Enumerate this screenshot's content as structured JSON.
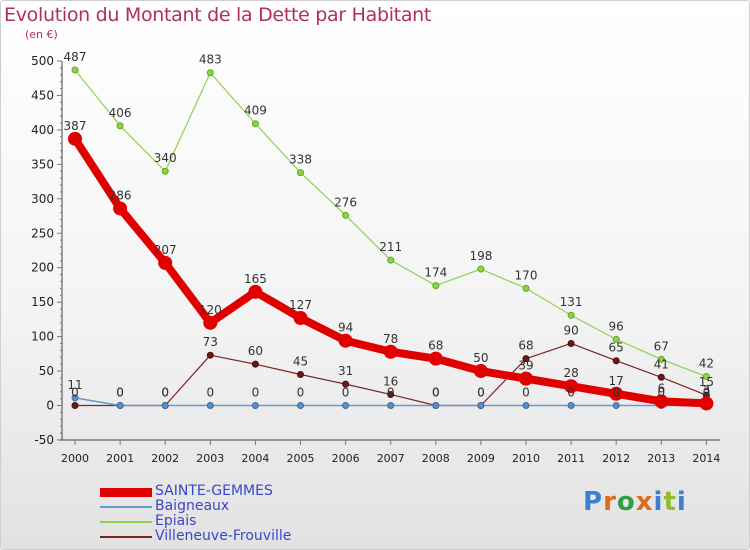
{
  "title": "Evolution du Montant de la Dette par Habitant",
  "subtitle": "(en €)",
  "logo": "Proxiti",
  "chart_data": {
    "type": "line",
    "title": "Evolution du Montant de la Dette par Habitant",
    "subtitle": "(en €)",
    "xlabel": "",
    "ylabel": "",
    "x": [
      "2000",
      "2001",
      "2002",
      "2003",
      "2004",
      "2005",
      "2006",
      "2007",
      "2008",
      "2009",
      "2010",
      "2011",
      "2012",
      "2013",
      "2014"
    ],
    "ylim": [
      -50,
      500
    ],
    "yticks": [
      -50,
      0,
      50,
      100,
      150,
      200,
      250,
      300,
      350,
      400,
      450,
      500
    ],
    "grid": false,
    "legend_position": "bottom-left",
    "series": [
      {
        "name": "SAINTE-GEMMES",
        "color": "#e00000",
        "values": [
          387,
          286,
          207,
          120,
          165,
          127,
          94,
          78,
          68,
          50,
          39,
          28,
          17,
          6,
          3
        ],
        "labels": [
          "387",
          "286",
          "207",
          "120",
          "165",
          "127",
          "94",
          "78",
          "68",
          "50",
          "39",
          "28",
          "17",
          "6",
          "3"
        ]
      },
      {
        "name": "Baigneaux",
        "color": "#6699cc",
        "values": [
          11,
          0,
          0,
          0,
          0,
          0,
          0,
          0,
          0,
          0,
          0,
          0,
          0,
          0,
          0
        ],
        "labels": [
          "11",
          "0",
          "0",
          "0",
          "0",
          "0",
          "0",
          "0",
          "0",
          "0",
          "0",
          "0",
          "0",
          "0",
          "0"
        ]
      },
      {
        "name": "Epiais",
        "color": "#8fd14f",
        "values": [
          487,
          406,
          340,
          483,
          409,
          338,
          276,
          211,
          174,
          198,
          170,
          131,
          96,
          67,
          42
        ],
        "labels": [
          "487",
          "406",
          "340",
          "483",
          "409",
          "338",
          "276",
          "211",
          "174",
          "198",
          "170",
          "131",
          "96",
          "67",
          "42"
        ]
      },
      {
        "name": "Villeneuve-Frouville",
        "color": "#7a2424",
        "values": [
          0,
          0,
          0,
          73,
          60,
          45,
          31,
          16,
          0,
          0,
          68,
          90,
          65,
          41,
          15
        ],
        "labels": [
          "0",
          "0",
          "0",
          "73",
          "60",
          "45",
          "31",
          "16",
          "0",
          "0",
          "68",
          "90",
          "65",
          "41",
          "15"
        ]
      }
    ]
  }
}
